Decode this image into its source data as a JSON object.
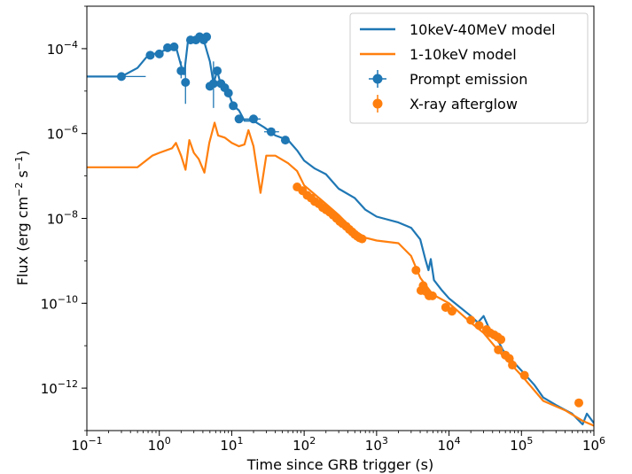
{
  "chart_data": {
    "type": "line",
    "xscale": "log",
    "yscale": "log",
    "xlim": [
      0.1,
      1000000
    ],
    "ylim": [
      1e-13,
      0.001
    ],
    "xlabel": "Time since GRB trigger (s)",
    "ylabel_main": "Flux (erg cm",
    "ylabel_sup1": "−2",
    "ylabel_mid": " s",
    "ylabel_sup2": "−1",
    "ylabel_end": ")",
    "xticks": [
      {
        "value": 0.1,
        "base": "10",
        "exp": "−1"
      },
      {
        "value": 1,
        "base": "10",
        "exp": "0"
      },
      {
        "value": 10,
        "base": "10",
        "exp": "1"
      },
      {
        "value": 100,
        "base": "10",
        "exp": "2"
      },
      {
        "value": 1000,
        "base": "10",
        "exp": "3"
      },
      {
        "value": 10000,
        "base": "10",
        "exp": "4"
      },
      {
        "value": 100000,
        "base": "10",
        "exp": "5"
      },
      {
        "value": 1000000,
        "base": "10",
        "exp": "6"
      }
    ],
    "yticks": [
      {
        "value": 1e-12,
        "base": "10",
        "exp": "−12"
      },
      {
        "value": 1e-10,
        "base": "10",
        "exp": "−10"
      },
      {
        "value": 1e-08,
        "base": "10",
        "exp": "−8"
      },
      {
        "value": 1e-06,
        "base": "10",
        "exp": "−6"
      },
      {
        "value": 0.0001,
        "base": "10",
        "exp": "−4"
      }
    ],
    "legend_position": "top-right",
    "colors": {
      "blue": "#1f77b4",
      "orange": "#ff7f0e"
    },
    "series": [
      {
        "name": "10keV-40MeV model",
        "kind": "line",
        "color": "#1f77b4",
        "points": [
          [
            0.1,
            2.2e-05
          ],
          [
            0.3,
            2.2e-05
          ],
          [
            0.5,
            3.5e-05
          ],
          [
            0.7,
            7e-05
          ],
          [
            1.0,
            8e-05
          ],
          [
            1.4,
            0.000105
          ],
          [
            1.7,
            0.00011
          ],
          [
            2.0,
            4e-05
          ],
          [
            2.2,
            2.5e-05
          ],
          [
            2.5,
            0.00016
          ],
          [
            3.0,
            0.00016
          ],
          [
            3.6,
            0.00019
          ],
          [
            4.1,
            0.00016
          ],
          [
            4.6,
            8e-05
          ],
          [
            5.0,
            5e-05
          ],
          [
            5.6,
            1.5e-05
          ],
          [
            6.3,
            3e-05
          ],
          [
            7.0,
            1.5e-05
          ],
          [
            7.9,
            1.2e-05
          ],
          [
            9.0,
            9e-06
          ],
          [
            10.5,
            4.5e-06
          ],
          [
            12.6,
            3.5e-06
          ],
          [
            15,
            2e-06
          ],
          [
            20,
            2e-06
          ],
          [
            28,
            1.4e-06
          ],
          [
            40,
            9e-07
          ],
          [
            60,
            7e-07
          ],
          [
            80,
            4e-07
          ],
          [
            100,
            2.3e-07
          ],
          [
            140,
            1.5e-07
          ],
          [
            200,
            1.1e-07
          ],
          [
            300,
            5e-08
          ],
          [
            500,
            3e-08
          ],
          [
            700,
            1.6e-08
          ],
          [
            1000,
            1.1e-08
          ],
          [
            2000,
            8e-09
          ],
          [
            3000,
            6e-09
          ],
          [
            4000,
            3.2e-09
          ],
          [
            4700,
            1.1e-09
          ],
          [
            5200,
            6e-10
          ],
          [
            5600,
            1.1e-09
          ],
          [
            6200,
            3.5e-10
          ],
          [
            8000,
            2e-10
          ],
          [
            10000,
            1.3e-10
          ],
          [
            20000,
            5e-11
          ],
          [
            25000,
            3.5e-11
          ],
          [
            30000,
            5e-11
          ],
          [
            36000,
            2.5e-11
          ],
          [
            45000,
            1.6e-11
          ],
          [
            55000,
            8e-12
          ],
          [
            70000,
            5e-12
          ],
          [
            100000,
            2.6e-12
          ],
          [
            150000,
            1.2e-12
          ],
          [
            200000,
            6e-13
          ],
          [
            300000,
            4e-13
          ],
          [
            500000,
            2.5e-13
          ],
          [
            700000,
            1.4e-13
          ],
          [
            800000,
            2.5e-13
          ],
          [
            1000000,
            1.5e-13
          ]
        ]
      },
      {
        "name": "1-10keV model",
        "kind": "line",
        "color": "#ff7f0e",
        "points": [
          [
            0.1,
            1.6e-07
          ],
          [
            0.5,
            1.6e-07
          ],
          [
            0.8,
            3e-07
          ],
          [
            1.0,
            3.5e-07
          ],
          [
            1.5,
            4.5e-07
          ],
          [
            1.7,
            6e-07
          ],
          [
            2.0,
            3e-07
          ],
          [
            2.3,
            1.4e-07
          ],
          [
            2.6,
            7e-07
          ],
          [
            3.0,
            3.5e-07
          ],
          [
            3.5,
            2.5e-07
          ],
          [
            4.2,
            1.2e-07
          ],
          [
            4.9,
            6e-07
          ],
          [
            5.8,
            1.8e-06
          ],
          [
            6.5,
            9e-07
          ],
          [
            8.0,
            8e-07
          ],
          [
            10,
            6e-07
          ],
          [
            12.6,
            5e-07
          ],
          [
            15,
            5.5e-07
          ],
          [
            17,
            1.2e-06
          ],
          [
            20,
            5e-07
          ],
          [
            25,
            4e-08
          ],
          [
            30,
            3e-07
          ],
          [
            40,
            3e-07
          ],
          [
            60,
            2e-07
          ],
          [
            80,
            1.3e-07
          ],
          [
            100,
            6e-08
          ],
          [
            200,
            2.2e-08
          ],
          [
            300,
            1.2e-08
          ],
          [
            500,
            5e-09
          ],
          [
            700,
            3.5e-09
          ],
          [
            1000,
            3e-09
          ],
          [
            2000,
            2.6e-09
          ],
          [
            3000,
            1.3e-09
          ],
          [
            4000,
            4e-10
          ],
          [
            5000,
            2.4e-10
          ],
          [
            6000,
            1.6e-10
          ],
          [
            10000,
            1e-10
          ],
          [
            20000,
            3.5e-11
          ],
          [
            30000,
            2e-11
          ],
          [
            50000,
            7e-12
          ],
          [
            100000,
            2e-12
          ],
          [
            200000,
            5e-13
          ],
          [
            400000,
            3e-13
          ],
          [
            700000,
            1.7e-13
          ],
          [
            1000000,
            1.3e-13
          ]
        ]
      },
      {
        "name": "Prompt emission",
        "kind": "points",
        "color": "#1f77b4",
        "points": [
          {
            "x": 0.3,
            "y": 2.2e-05,
            "xerr": [
              0.1,
              0.65
            ]
          },
          {
            "x": 0.75,
            "y": 7e-05,
            "xerr": [
              0.65,
              0.85
            ]
          },
          {
            "x": 1.0,
            "y": 7.5e-05
          },
          {
            "x": 1.3,
            "y": 0.000105
          },
          {
            "x": 1.6,
            "y": 0.00011
          },
          {
            "x": 2.0,
            "y": 3e-05,
            "yerr": [
              2e-05,
              5e-05
            ]
          },
          {
            "x": 2.3,
            "y": 1.6e-05,
            "yerr": [
              5e-06,
              4e-05
            ]
          },
          {
            "x": 2.7,
            "y": 0.00016
          },
          {
            "x": 3.2,
            "y": 0.00016
          },
          {
            "x": 3.6,
            "y": 0.00019
          },
          {
            "x": 4.1,
            "y": 0.00016
          },
          {
            "x": 4.5,
            "y": 0.00019
          },
          {
            "x": 5.0,
            "y": 1.3e-05
          },
          {
            "x": 5.6,
            "y": 1.5e-05,
            "yerr": [
              4e-06,
              5e-05
            ]
          },
          {
            "x": 6.3,
            "y": 3e-05
          },
          {
            "x": 7.1,
            "y": 1.5e-05
          },
          {
            "x": 8.0,
            "y": 1.2e-05
          },
          {
            "x": 9.0,
            "y": 9e-06
          },
          {
            "x": 10.5,
            "y": 4.5e-06
          },
          {
            "x": 12.6,
            "y": 2.2e-06
          },
          {
            "x": 20,
            "y": 2.2e-06,
            "xerr": [
              15,
              25
            ]
          },
          {
            "x": 35,
            "y": 1.1e-06,
            "xerr": [
              28,
              45
            ]
          },
          {
            "x": 55,
            "y": 7e-07
          }
        ]
      },
      {
        "name": "X-ray afterglow",
        "kind": "points",
        "color": "#ff7f0e",
        "points": [
          {
            "x": 80,
            "y": 5.5e-08
          },
          {
            "x": 95,
            "y": 4.5e-08
          },
          {
            "x": 110,
            "y": 3.5e-08
          },
          {
            "x": 125,
            "y": 3e-08
          },
          {
            "x": 140,
            "y": 2.5e-08
          },
          {
            "x": 160,
            "y": 2.2e-08
          },
          {
            "x": 180,
            "y": 1.8e-08
          },
          {
            "x": 200,
            "y": 1.6e-08
          },
          {
            "x": 225,
            "y": 1.4e-08
          },
          {
            "x": 250,
            "y": 1.2e-08
          },
          {
            "x": 280,
            "y": 1e-08
          },
          {
            "x": 310,
            "y": 8.5e-09
          },
          {
            "x": 340,
            "y": 7.5e-09
          },
          {
            "x": 380,
            "y": 6.5e-09
          },
          {
            "x": 420,
            "y": 5.5e-09
          },
          {
            "x": 460,
            "y": 4.8e-09
          },
          {
            "x": 500,
            "y": 4.2e-09
          },
          {
            "x": 540,
            "y": 3.8e-09
          },
          {
            "x": 580,
            "y": 3.5e-09
          },
          {
            "x": 630,
            "y": 3.3e-09
          },
          {
            "x": 3500,
            "y": 6e-10
          },
          {
            "x": 4100,
            "y": 2e-10
          },
          {
            "x": 4400,
            "y": 2.6e-10
          },
          {
            "x": 4800,
            "y": 1.9e-10
          },
          {
            "x": 5300,
            "y": 1.5e-10
          },
          {
            "x": 5900,
            "y": 1.5e-10
          },
          {
            "x": 9000,
            "y": 8e-11
          },
          {
            "x": 11000,
            "y": 6.5e-11
          },
          {
            "x": 20000,
            "y": 4e-11
          },
          {
            "x": 26000,
            "y": 3e-11
          },
          {
            "x": 33000,
            "y": 2.4e-11
          },
          {
            "x": 37000,
            "y": 2e-11
          },
          {
            "x": 42000,
            "y": 1.8e-11
          },
          {
            "x": 47000,
            "y": 1.6e-11
          },
          {
            "x": 52000,
            "y": 1.4e-11
          },
          {
            "x": 48000,
            "y": 8e-12
          },
          {
            "x": 60000,
            "y": 6e-12
          },
          {
            "x": 68000,
            "y": 5e-12
          },
          {
            "x": 75000,
            "y": 3.5e-12
          },
          {
            "x": 110000,
            "y": 2e-12
          },
          {
            "x": 620000,
            "y": 4.5e-13
          }
        ]
      }
    ]
  }
}
